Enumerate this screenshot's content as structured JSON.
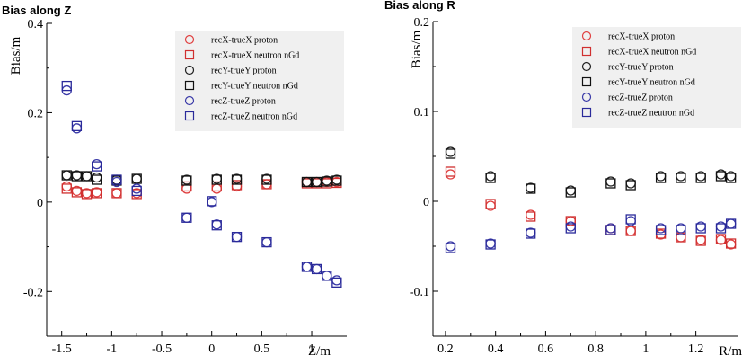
{
  "chart_data": [
    {
      "type": "scatter",
      "title": "Bias along Z",
      "xlabel": "Z/m",
      "ylabel": "Bias/m",
      "xlim": [
        -1.65,
        1.35
      ],
      "ylim": [
        -0.3,
        0.4
      ],
      "x_ticks": [
        -1.5,
        -1,
        -0.5,
        0,
        0.5,
        1
      ],
      "x_tick_labels": [
        "-1.5",
        "-1",
        "-0.5",
        "0",
        "0.5",
        "1"
      ],
      "y_ticks": [
        -0.2,
        0,
        0.2,
        0.4
      ],
      "y_tick_labels": [
        "-0.2",
        "0",
        "0.2",
        "0.4"
      ],
      "legend_position": "top-right",
      "series": [
        {
          "name": "recX-trueX proton",
          "marker": "circle",
          "color": "#e04040",
          "x": [
            -1.45,
            -1.35,
            -1.25,
            -1.15,
            -0.95,
            -0.75,
            -0.25,
            0.05,
            0.25,
            0.55,
            0.95,
            1.05,
            1.15,
            1.25
          ],
          "y": [
            0.035,
            0.025,
            0.02,
            0.022,
            0.02,
            0.02,
            0.03,
            0.03,
            0.035,
            0.04,
            0.045,
            0.045,
            0.045,
            0.045
          ]
        },
        {
          "name": "recX-trueX neutron nGd",
          "marker": "square",
          "color": "#d03030",
          "x": [
            -1.45,
            -1.35,
            -1.25,
            -1.15,
            -0.95,
            -0.75,
            -0.25,
            0.05,
            0.25,
            0.55,
            0.95,
            1.05,
            1.15,
            1.25
          ],
          "y": [
            0.03,
            0.022,
            0.018,
            0.02,
            0.02,
            0.018,
            0.035,
            0.035,
            0.038,
            0.04,
            0.042,
            0.042,
            0.042,
            0.043
          ]
        },
        {
          "name": "recY-trueY proton",
          "marker": "circle",
          "color": "#202020",
          "x": [
            -1.45,
            -1.35,
            -1.25,
            -1.15,
            -0.95,
            -0.75,
            -0.25,
            0.05,
            0.25,
            0.55,
            0.95,
            1.05,
            1.15,
            1.25
          ],
          "y": [
            0.06,
            0.06,
            0.058,
            0.055,
            0.05,
            0.052,
            0.05,
            0.052,
            0.052,
            0.052,
            0.045,
            0.045,
            0.048,
            0.05
          ]
        },
        {
          "name": "recY-trueY neutron nGd",
          "marker": "square",
          "color": "#111111",
          "x": [
            -1.45,
            -1.35,
            -1.25,
            -1.15,
            -0.95,
            -0.75,
            -0.25,
            0.05,
            0.25,
            0.55,
            0.95,
            1.05,
            1.15,
            1.25
          ],
          "y": [
            0.06,
            0.058,
            0.058,
            0.05,
            0.048,
            0.052,
            0.048,
            0.05,
            0.05,
            0.05,
            0.045,
            0.045,
            0.046,
            0.048
          ]
        },
        {
          "name": "recZ-trueZ proton",
          "marker": "circle",
          "color": "#3a3aa8",
          "x": [
            -1.45,
            -1.35,
            -1.15,
            -0.95,
            -0.75,
            -0.25,
            0.0,
            0.05,
            0.25,
            0.55,
            0.95,
            1.05,
            1.15,
            1.25
          ],
          "y": [
            0.25,
            0.165,
            0.085,
            0.045,
            0.03,
            -0.035,
            0.0,
            -0.05,
            -0.078,
            -0.09,
            -0.145,
            -0.15,
            -0.165,
            -0.175
          ]
        },
        {
          "name": "recZ-trueZ neutron nGd",
          "marker": "square",
          "color": "#2a2a9a",
          "x": [
            -1.45,
            -1.35,
            -1.15,
            -0.95,
            -0.75,
            -0.25,
            0.0,
            0.05,
            0.25,
            0.55,
            0.95,
            1.05,
            1.15,
            1.25
          ],
          "y": [
            0.26,
            0.17,
            0.08,
            0.05,
            0.025,
            -0.035,
            0.002,
            -0.052,
            -0.078,
            -0.09,
            -0.145,
            -0.15,
            -0.165,
            -0.18
          ]
        }
      ]
    },
    {
      "type": "scatter",
      "title": "Bias along R",
      "xlabel": "R/m",
      "ylabel": "Bias/m",
      "xlim": [
        0.15,
        1.37
      ],
      "ylim": [
        -0.15,
        0.2
      ],
      "x_ticks": [
        0.2,
        0.4,
        0.6,
        0.8,
        1.0,
        1.2
      ],
      "x_tick_labels": [
        "0.2",
        "0.4",
        "0.6",
        "0.8",
        "1",
        "1.2"
      ],
      "y_ticks": [
        -0.1,
        0,
        0.1,
        0.2
      ],
      "y_tick_labels": [
        "-0.1",
        "0",
        "0.1",
        "0.2"
      ],
      "legend_position": "top-right",
      "series": [
        {
          "name": "recX-trueX proton",
          "marker": "circle",
          "color": "#e04040",
          "x": [
            0.22,
            0.38,
            0.54,
            0.7,
            0.86,
            0.94,
            1.06,
            1.14,
            1.22,
            1.3,
            1.34
          ],
          "y": [
            0.03,
            -0.005,
            -0.015,
            -0.022,
            -0.03,
            -0.033,
            -0.037,
            -0.04,
            -0.043,
            -0.043,
            -0.048
          ]
        },
        {
          "name": "recX-trueX neutron nGd",
          "marker": "square",
          "color": "#d03030",
          "x": [
            0.22,
            0.38,
            0.54,
            0.7,
            0.86,
            0.94,
            1.06,
            1.14,
            1.22,
            1.3,
            1.34
          ],
          "y": [
            0.033,
            -0.003,
            -0.017,
            -0.022,
            -0.032,
            -0.033,
            -0.036,
            -0.04,
            -0.044,
            -0.042,
            -0.047
          ]
        },
        {
          "name": "recY-trueY proton",
          "marker": "circle",
          "color": "#202020",
          "x": [
            0.22,
            0.38,
            0.54,
            0.7,
            0.86,
            0.94,
            1.06,
            1.14,
            1.22,
            1.3,
            1.34
          ],
          "y": [
            0.055,
            0.028,
            0.015,
            0.012,
            0.022,
            0.02,
            0.028,
            0.028,
            0.028,
            0.03,
            0.028
          ]
        },
        {
          "name": "recY-trueY neutron nGd",
          "marker": "square",
          "color": "#111111",
          "x": [
            0.22,
            0.38,
            0.54,
            0.7,
            0.86,
            0.94,
            1.06,
            1.14,
            1.22,
            1.3,
            1.34
          ],
          "y": [
            0.053,
            0.026,
            0.014,
            0.01,
            0.02,
            0.018,
            0.026,
            0.026,
            0.026,
            0.028,
            0.026
          ]
        },
        {
          "name": "recZ-trueZ proton",
          "marker": "circle",
          "color": "#3a3aa8",
          "x": [
            0.22,
            0.38,
            0.54,
            0.7,
            0.86,
            0.94,
            1.06,
            1.14,
            1.22,
            1.3,
            1.34
          ],
          "y": [
            -0.05,
            -0.047,
            -0.035,
            -0.028,
            -0.03,
            -0.022,
            -0.03,
            -0.03,
            -0.028,
            -0.028,
            -0.025
          ]
        },
        {
          "name": "recZ-trueZ neutron nGd",
          "marker": "square",
          "color": "#2a2a9a",
          "x": [
            0.22,
            0.38,
            0.54,
            0.7,
            0.86,
            0.94,
            1.06,
            1.14,
            1.22,
            1.3,
            1.34
          ],
          "y": [
            -0.052,
            -0.048,
            -0.036,
            -0.03,
            -0.032,
            -0.02,
            -0.032,
            -0.032,
            -0.03,
            -0.03,
            -0.025
          ]
        }
      ]
    }
  ]
}
